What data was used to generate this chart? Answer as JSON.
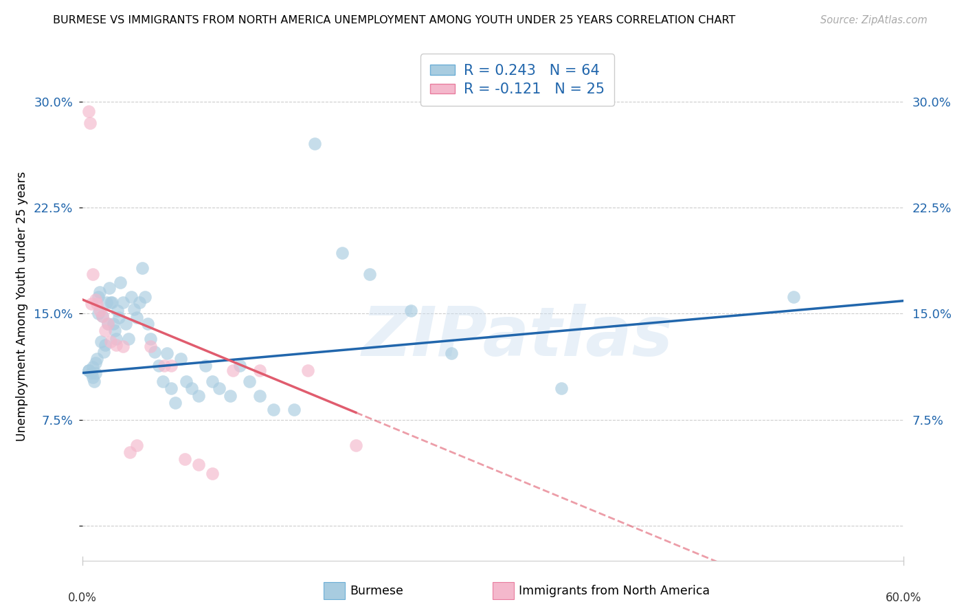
{
  "title": "BURMESE VS IMMIGRANTS FROM NORTH AMERICA UNEMPLOYMENT AMONG YOUTH UNDER 25 YEARS CORRELATION CHART",
  "source": "Source: ZipAtlas.com",
  "ylabel": "Unemployment Among Youth under 25 years",
  "xlim": [
    0.0,
    0.6
  ],
  "ylim": [
    -0.025,
    0.335
  ],
  "ytick_vals": [
    0.0,
    0.075,
    0.15,
    0.225,
    0.3
  ],
  "ytick_labels": [
    "",
    "7.5%",
    "15.0%",
    "22.5%",
    "30.0%"
  ],
  "burmese_color": "#a8cce0",
  "burmese_edge": "#6baed6",
  "immigrants_color": "#f4b8cc",
  "immigrants_edge": "#e87c9e",
  "burmese_line_color": "#2166ac",
  "immigrants_line_color": "#e05c6e",
  "burmese_R": 0.243,
  "burmese_N": 64,
  "immigrants_R": -0.121,
  "immigrants_N": 25,
  "legend_label_1": "Burmese",
  "legend_label_2": "Immigrants from North America",
  "watermark": "ZIPatlas",
  "burmese_x": [
    0.005,
    0.005,
    0.007,
    0.008,
    0.008,
    0.009,
    0.01,
    0.01,
    0.011,
    0.012,
    0.012,
    0.013,
    0.014,
    0.015,
    0.016,
    0.017,
    0.018,
    0.019,
    0.02,
    0.021,
    0.022,
    0.023,
    0.024,
    0.025,
    0.026,
    0.027,
    0.028,
    0.03,
    0.032,
    0.034,
    0.036,
    0.038,
    0.04,
    0.042,
    0.044,
    0.046,
    0.048,
    0.05,
    0.053,
    0.056,
    0.059,
    0.062,
    0.065,
    0.068,
    0.072,
    0.076,
    0.08,
    0.085,
    0.09,
    0.095,
    0.1,
    0.108,
    0.115,
    0.122,
    0.13,
    0.14,
    0.155,
    0.17,
    0.19,
    0.21,
    0.24,
    0.27,
    0.35,
    0.52
  ],
  "burmese_y": [
    0.11,
    0.11,
    0.108,
    0.112,
    0.105,
    0.102,
    0.115,
    0.108,
    0.118,
    0.15,
    0.162,
    0.165,
    0.13,
    0.148,
    0.123,
    0.128,
    0.158,
    0.143,
    0.168,
    0.158,
    0.158,
    0.143,
    0.138,
    0.132,
    0.152,
    0.147,
    0.172,
    0.158,
    0.143,
    0.132,
    0.162,
    0.153,
    0.147,
    0.158,
    0.182,
    0.162,
    0.143,
    0.132,
    0.123,
    0.113,
    0.102,
    0.122,
    0.097,
    0.087,
    0.118,
    0.102,
    0.097,
    0.092,
    0.113,
    0.102,
    0.097,
    0.092,
    0.113,
    0.102,
    0.092,
    0.082,
    0.082,
    0.27,
    0.193,
    0.178,
    0.152,
    0.122,
    0.097,
    0.162
  ],
  "immigrants_x": [
    0.005,
    0.006,
    0.007,
    0.008,
    0.01,
    0.011,
    0.013,
    0.015,
    0.017,
    0.019,
    0.021,
    0.025,
    0.03,
    0.035,
    0.04,
    0.05,
    0.06,
    0.065,
    0.075,
    0.085,
    0.095,
    0.11,
    0.13,
    0.165,
    0.2
  ],
  "immigrants_y": [
    0.293,
    0.285,
    0.157,
    0.178,
    0.16,
    0.157,
    0.152,
    0.148,
    0.138,
    0.143,
    0.13,
    0.128,
    0.127,
    0.052,
    0.057,
    0.127,
    0.113,
    0.113,
    0.047,
    0.043,
    0.037,
    0.11,
    0.11,
    0.11,
    0.057
  ]
}
